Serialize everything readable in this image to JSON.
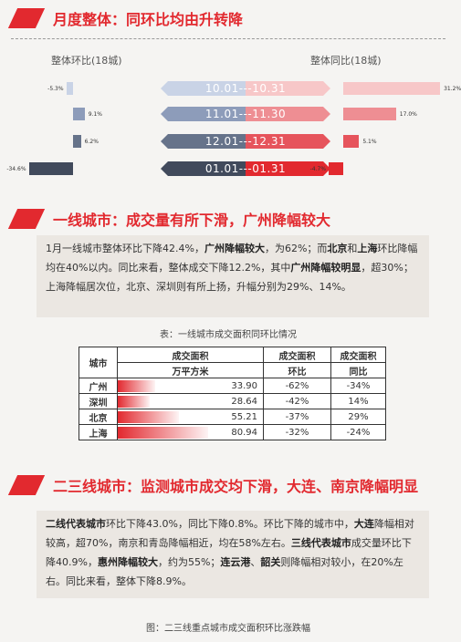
{
  "section1": {
    "title": "月度整体：同环比均由升转降"
  },
  "chart": {
    "left_label": "整体环比(18城)",
    "right_label": "整体同比(18城)",
    "periods": [
      "10.01---10.31",
      "11.01---11.30",
      "12.01---12.31",
      "01.01---01.31"
    ],
    "mom": [
      -5.3,
      9.1,
      6.2,
      -34.6
    ],
    "yoy": [
      31.2,
      17.0,
      5.1,
      -4.7
    ],
    "mom_labels": [
      "-5.3%",
      "9.1%",
      "6.2%",
      "-34.6%"
    ],
    "yoy_labels": [
      "31.2%",
      "17.0%",
      "5.1%",
      "-4.7%"
    ],
    "left_colors": [
      "#c9d3e6",
      "#8d9cba",
      "#66738a",
      "#414a5c"
    ],
    "right_colors": [
      "#f7c7c8",
      "#ee8e93",
      "#e6545c",
      "#e2292f"
    ]
  },
  "section2": {
    "title": "一线城市：成交量有所下滑，广州降幅较大",
    "p": [
      "1月一线城市整体环比下降42.4%，",
      "广州降幅较大",
      "，为62%；而",
      "北京",
      "和",
      "上海",
      "环比降幅均在40%以内。同比来看，整体成交下降12.2%，其中",
      "广州降幅较明显",
      "，超30%；上海降幅居次位，北京、深圳则有所上扬，升幅分别为29%、14%。"
    ],
    "caption": "表：一线城市成交面积同环比情况"
  },
  "table": {
    "h_city": "城市",
    "h_area": "成交面积",
    "h_area_unit": "万平方米",
    "h_mom": "成交面积",
    "h_mom_sub": "环比",
    "h_yoy": "成交面积",
    "h_yoy_sub": "同比",
    "rows": [
      {
        "city": "广州",
        "area": "33.90",
        "mom": "-62%",
        "yoy": "-34%"
      },
      {
        "city": "深圳",
        "area": "28.64",
        "mom": "-42%",
        "yoy": "14%"
      },
      {
        "city": "北京",
        "area": "55.21",
        "mom": "-37%",
        "yoy": "29%"
      },
      {
        "city": "上海",
        "area": "80.94",
        "mom": "-32%",
        "yoy": "-24%"
      }
    ]
  },
  "section3": {
    "title": "二三线城市：监测城市成交均下滑，大连、南京降幅明显",
    "p": [
      "二线代表城市",
      "环比下降43.0%，同比下降0.8%。环比下降的城市中，",
      "大连",
      "降幅相对较高，超70%，南京和青岛降幅相近，均在58%左右。",
      "三线代表城市",
      "成交量环比下降40.9%，",
      "惠州降幅较大",
      "，约为55%；",
      "连云港",
      "、",
      "韶关",
      "则降幅相对较小，在20%左右。同比来看，整体下降8.9%。"
    ],
    "caption": "图：二三线重点城市成交面积环比涨跌幅"
  }
}
